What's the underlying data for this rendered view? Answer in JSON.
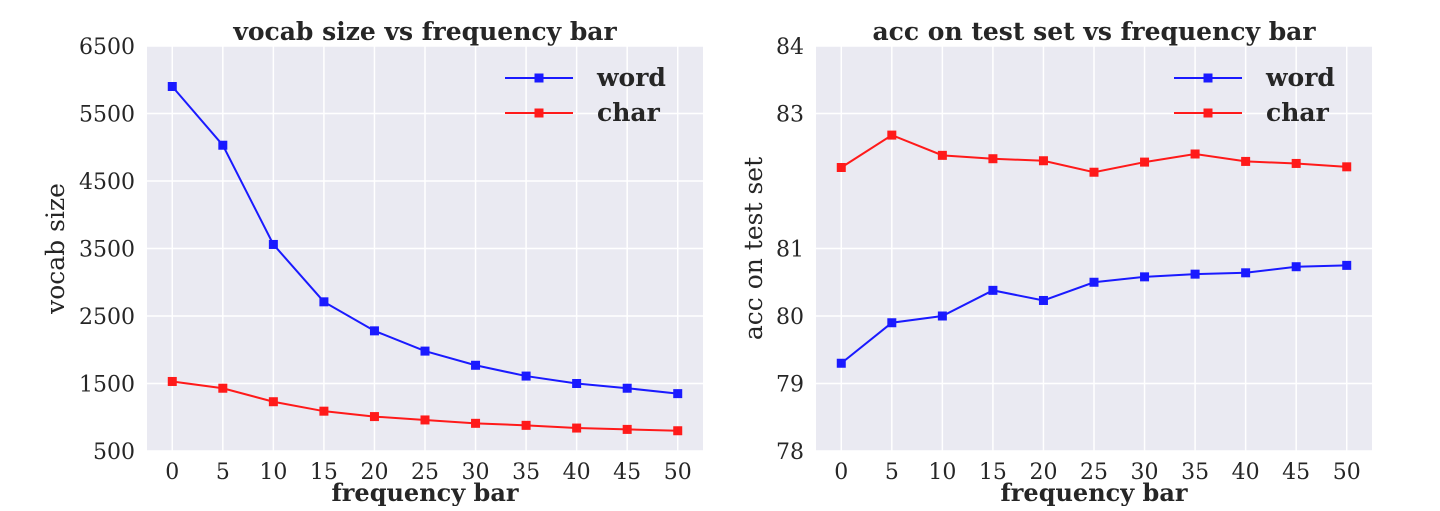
{
  "chart_data": [
    {
      "type": "line",
      "title": "vocab size vs frequency bar",
      "xlabel": "frequency bar",
      "ylabel": "vocab size",
      "x": [
        0,
        5,
        10,
        15,
        20,
        25,
        30,
        35,
        40,
        45,
        50
      ],
      "xticks": [
        "0",
        "5",
        "10",
        "15",
        "20",
        "25",
        "30",
        "35",
        "40",
        "45",
        "50"
      ],
      "xlim": [
        -2.5,
        52.5
      ],
      "ylim": [
        500,
        6500
      ],
      "yticks": [
        500,
        1500,
        2500,
        3500,
        4500,
        5500,
        6500
      ],
      "ytick_labels": [
        "500",
        "1500",
        "2500",
        "3500",
        "4500",
        "5500",
        "6500"
      ],
      "grid": true,
      "legend": "top-right",
      "series": [
        {
          "name": "word",
          "color": "#1a1aff",
          "marker": "square",
          "values": [
            5900,
            5030,
            3560,
            2710,
            2280,
            1980,
            1770,
            1610,
            1500,
            1430,
            1350
          ]
        },
        {
          "name": "char",
          "color": "#ff1a1a",
          "marker": "square",
          "values": [
            1530,
            1430,
            1230,
            1090,
            1010,
            960,
            910,
            880,
            840,
            820,
            800
          ]
        }
      ]
    },
    {
      "type": "line",
      "title": "acc on test set vs frequency bar",
      "xlabel": "frequency bar",
      "ylabel": "acc on test set",
      "x": [
        0,
        5,
        10,
        15,
        20,
        25,
        30,
        35,
        40,
        45,
        50
      ],
      "xticks": [
        "0",
        "5",
        "10",
        "15",
        "20",
        "25",
        "30",
        "35",
        "40",
        "45",
        "50"
      ],
      "xlim": [
        -2.5,
        52.5
      ],
      "ylim": [
        78,
        84
      ],
      "yticks": [
        78,
        79,
        80,
        81,
        83,
        84
      ],
      "ytick_labels": [
        "78",
        "79",
        "80",
        "81",
        "83",
        "84"
      ],
      "grid": true,
      "legend": "top-right",
      "series": [
        {
          "name": "word",
          "color": "#1a1aff",
          "marker": "square",
          "values": [
            79.3,
            79.9,
            80.0,
            80.38,
            80.23,
            80.5,
            80.58,
            80.62,
            80.64,
            80.73,
            80.75
          ]
        },
        {
          "name": "char",
          "color": "#ff1a1a",
          "marker": "square",
          "values": [
            82.2,
            82.68,
            82.38,
            82.33,
            82.3,
            82.13,
            82.28,
            82.4,
            82.29,
            82.26,
            82.21
          ]
        }
      ]
    }
  ]
}
